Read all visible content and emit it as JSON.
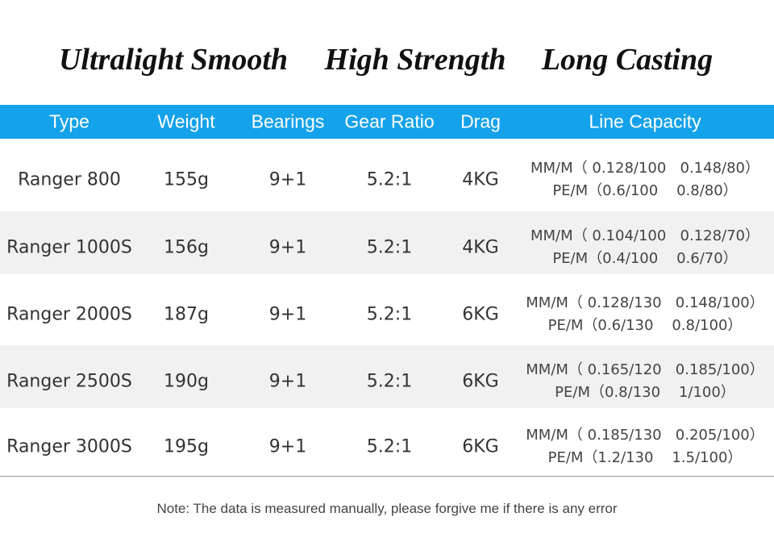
{
  "header": {
    "features": [
      "Ultralight Smooth",
      "High Strength",
      "Long Casting"
    ]
  },
  "table": {
    "columns": [
      "Type",
      "Weight",
      "Bearings",
      "Gear Ratio",
      "Drag",
      "Line Capacity"
    ],
    "rows": [
      [
        "Ranger 800",
        "155g",
        "9+1",
        "5.2:1",
        "4KG",
        "MM/M（ 0.128/100   0.148/80）",
        "PE/M（0.6/100    0.8/80）"
      ],
      [
        "Ranger 1000S",
        "156g",
        "9+1",
        "5.2:1",
        "4KG",
        "MM/M（ 0.104/100   0.128/70）",
        "PE/M（0.4/100    0.6/70）"
      ],
      [
        "Ranger 2000S",
        "187g",
        "9+1",
        "5.2:1",
        "6KG",
        "MM/M（ 0.128/130   0.148/100）",
        "PE/M（0.6/130    0.8/100）"
      ],
      [
        "Ranger 2500S",
        "190g",
        "9+1",
        "5.2:1",
        "6KG",
        "MM/M（ 0.165/120   0.185/100）",
        "PE/M（0.8/130    1/100）"
      ],
      [
        "Ranger 3000S",
        "195g",
        "9+1",
        "5.2:1",
        "6KG",
        "MM/M（ 0.185/130   0.205/100）",
        "PE/M（1.2/130    1.5/100）"
      ]
    ]
  },
  "note": "Note: The data is measured manually, please forgive me if there is any error"
}
